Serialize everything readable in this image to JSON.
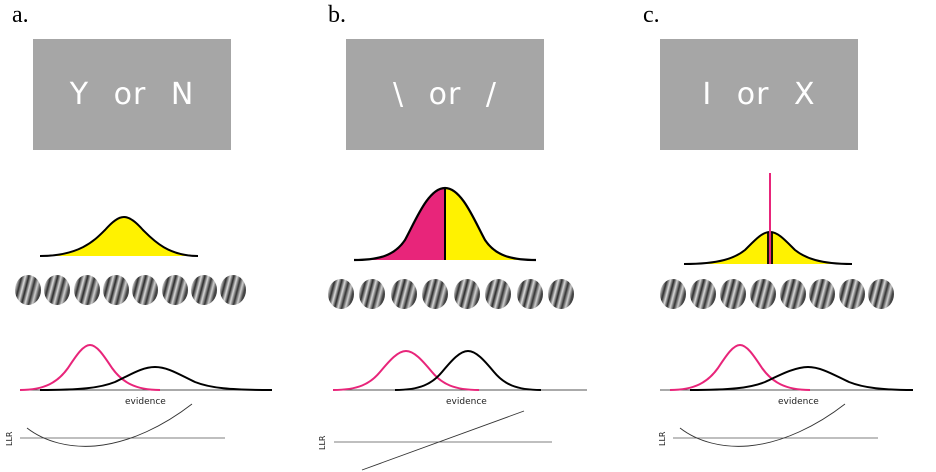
{
  "panels": [
    {
      "letter": "a.",
      "stimulus": "Y or N",
      "evidence_label": "evidence",
      "llr_label": "LLR"
    },
    {
      "letter": "b.",
      "stimulus": "\\ or /",
      "evidence_label": "evidence",
      "llr_label": "LLR"
    },
    {
      "letter": "c.",
      "stimulus": "I or X",
      "evidence_label": "evidence",
      "llr_label": "LLR"
    }
  ],
  "colors": {
    "magenta": "#e8257a",
    "yellow": "#fff200",
    "box": "#a6a6a6",
    "axis": "#555555"
  }
}
